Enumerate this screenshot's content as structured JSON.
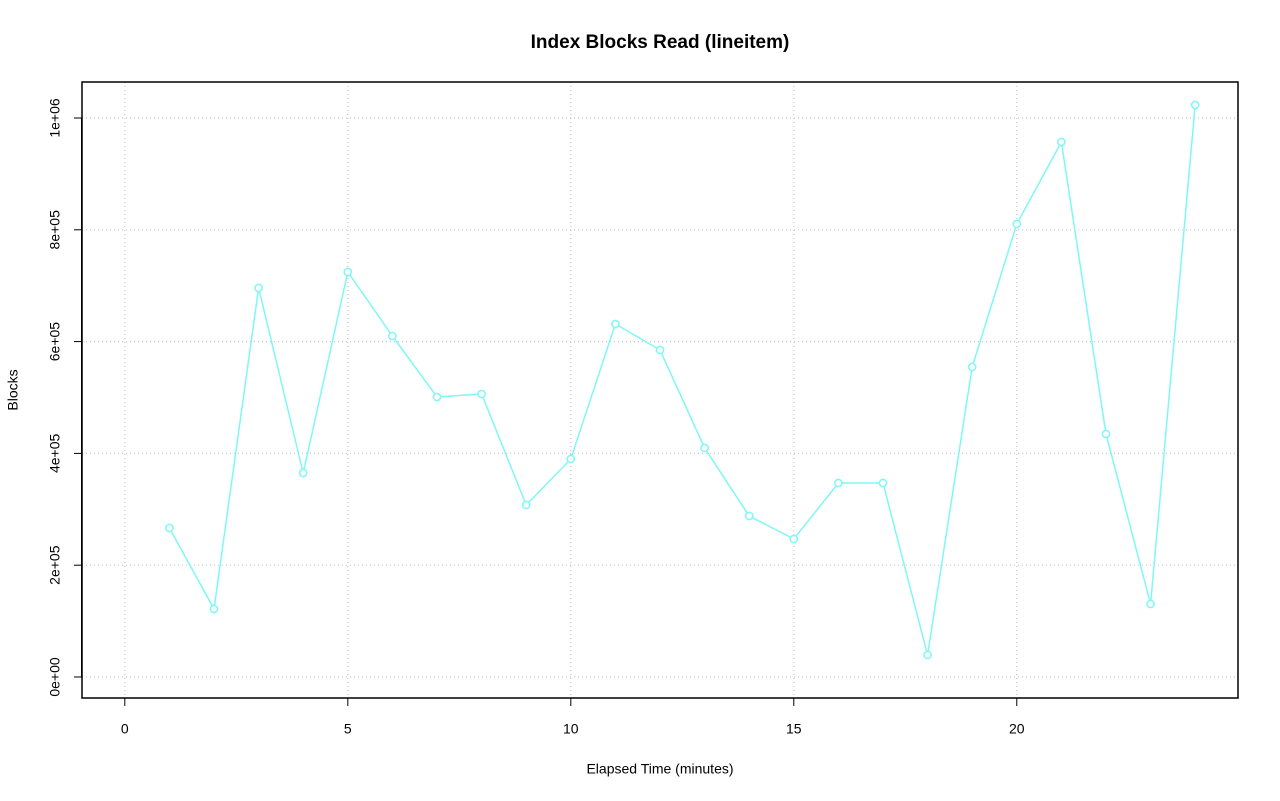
{
  "chart_data": {
    "type": "line",
    "title": "Index Blocks Read (lineitem)",
    "x_label": "Elapsed Time (minutes)",
    "y_label": "Blocks",
    "x": [
      1,
      2,
      3,
      4,
      5,
      6,
      7,
      8,
      9,
      10,
      11,
      12,
      13,
      14,
      15,
      16,
      17,
      18,
      19,
      20,
      21,
      22,
      23,
      24
    ],
    "values": [
      266500,
      121600,
      695900,
      364900,
      724500,
      610000,
      500900,
      506300,
      307700,
      390000,
      631500,
      585000,
      409700,
      288000,
      246900,
      347000,
      347000,
      39400,
      554600,
      810400,
      957100,
      434700,
      130600,
      1023300
    ],
    "color": "#7ff7f7",
    "xlim": [
      -0.96,
      24.96
    ],
    "xticks": [
      0,
      5,
      10,
      15,
      20
    ],
    "ylim": [
      -37600,
      1064400
    ],
    "yticks": [
      {
        "value": 0,
        "label": "0e+00"
      },
      {
        "value": 200000,
        "label": "2e+05"
      },
      {
        "value": 400000,
        "label": "4e+05"
      },
      {
        "value": 600000,
        "label": "6e+05"
      },
      {
        "value": 800000,
        "label": "8e+05"
      },
      {
        "value": 1000000,
        "label": "1e+06"
      }
    ],
    "grid": true
  }
}
